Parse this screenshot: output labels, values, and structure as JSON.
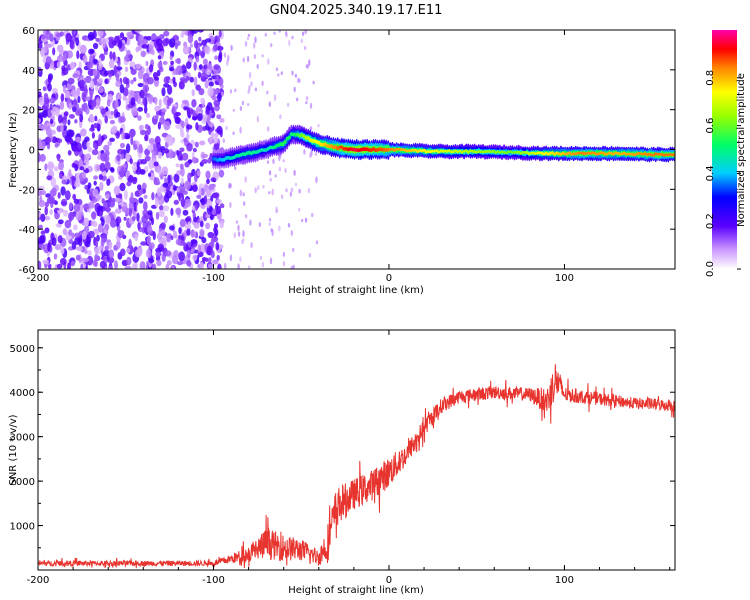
{
  "title": "GN04.2025.340.19.17.E11",
  "chart_data": [
    {
      "type": "heatmap",
      "name": "spectrogram",
      "xlabel": "Height of straight line (km)",
      "ylabel": "Frequency (Hz)",
      "xlim": [
        -200,
        163
      ],
      "ylim": [
        -60,
        60
      ],
      "xticks": [
        -200,
        -100,
        0,
        100
      ],
      "xtick_labels": [
        "-200",
        "-100",
        "0",
        "100"
      ],
      "yticks": [
        -60,
        -40,
        -20,
        0,
        20,
        40,
        60
      ],
      "ytick_labels": [
        "-60",
        "-40",
        "-20",
        "0",
        "20",
        "40",
        "60"
      ],
      "colorbar": {
        "label": "Normalized spectral amplitude",
        "range": [
          0,
          1
        ],
        "ticks": [
          0.0,
          0.2,
          0.4,
          0.6,
          0.8
        ],
        "tick_labels": [
          "0.0",
          "0.2",
          "0.4",
          "0.6",
          "0.8"
        ]
      },
      "noise_region_x": [
        -200,
        -95
      ],
      "signal_trace": {
        "x": [
          -100,
          -95,
          -90,
          -80,
          -70,
          -60,
          -55,
          -50,
          -45,
          -40,
          -30,
          -20,
          -10,
          0,
          10,
          30,
          50,
          70,
          90,
          110,
          130,
          150,
          163
        ],
        "freq": [
          -5,
          -5,
          -4,
          -2,
          0,
          3,
          8,
          7,
          5,
          3,
          1,
          0,
          0,
          0,
          -0.5,
          -1,
          -1,
          -1.5,
          -2,
          -2,
          -2,
          -2.5,
          -2.5
        ],
        "amp": [
          0.35,
          0.4,
          0.45,
          0.5,
          0.45,
          0.55,
          0.5,
          0.6,
          0.7,
          0.75,
          0.85,
          0.95,
          0.9,
          0.85,
          0.8,
          0.7,
          0.65,
          0.6,
          0.75,
          0.85,
          0.8,
          0.85,
          0.85
        ]
      }
    },
    {
      "type": "line",
      "name": "snr",
      "xlabel": "Height of straight line (km)",
      "ylabel": "SNR (10 * v/v)",
      "xlim": [
        -200,
        163
      ],
      "ylim": [
        0,
        5400
      ],
      "xticks": [
        -200,
        -100,
        0,
        100
      ],
      "xtick_labels": [
        "-200",
        "-100",
        "0",
        "100"
      ],
      "yticks": [
        1000,
        2000,
        3000,
        4000,
        5000
      ],
      "ytick_labels": [
        "1000",
        "2000",
        "3000",
        "4000",
        "5000"
      ],
      "color": "#e8342e",
      "envelope": {
        "x": [
          -200,
          -100,
          -90,
          -80,
          -70,
          -60,
          -50,
          -40,
          -35,
          -30,
          -20,
          -10,
          0,
          10,
          20,
          30,
          40,
          60,
          80,
          90,
          95,
          100,
          120,
          140,
          163
        ],
        "mean": [
          150,
          150,
          250,
          350,
          600,
          500,
          450,
          280,
          600,
          1400,
          1700,
          1900,
          2200,
          2600,
          3200,
          3700,
          3900,
          4000,
          3950,
          3800,
          4300,
          3950,
          3850,
          3750,
          3700
        ],
        "noise": [
          120,
          120,
          200,
          400,
          700,
          600,
          500,
          350,
          900,
          900,
          700,
          700,
          700,
          500,
          400,
          350,
          300,
          300,
          300,
          600,
          900,
          350,
          280,
          260,
          260
        ]
      }
    }
  ]
}
